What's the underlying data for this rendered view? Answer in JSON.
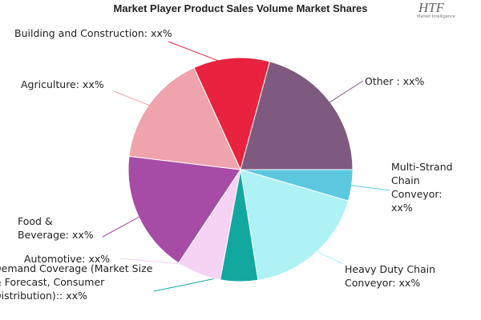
{
  "chart_data": {
    "type": "pie",
    "title": "Market Player Product Sales Volume Market Shares",
    "categories": [
      "Multi-Strand Chain Conveyor: xx%",
      "Heavy Duty Chain Conveyor: xx%",
      "Demand Coverage (Market Size & Forecast, Consumer Distribution):: xx%",
      "Automotive: xx%",
      "Food & Beverage: xx%",
      "Agriculture: xx%",
      "Building and Construction: xx%",
      "Other : xx%"
    ],
    "values": [
      4.5,
      18,
      5.4,
      6.4,
      17.6,
      16.3,
      11,
      20.8
    ],
    "colors": [
      "#5bc8e0",
      "#aef2f5",
      "#12a8a0",
      "#f6d2f4",
      "#a64ca6",
      "#eea3ad",
      "#e8223f",
      "#7f5a80"
    ]
  },
  "logo": {
    "text": "HTF",
    "subtitle": "Market Intelligence"
  }
}
